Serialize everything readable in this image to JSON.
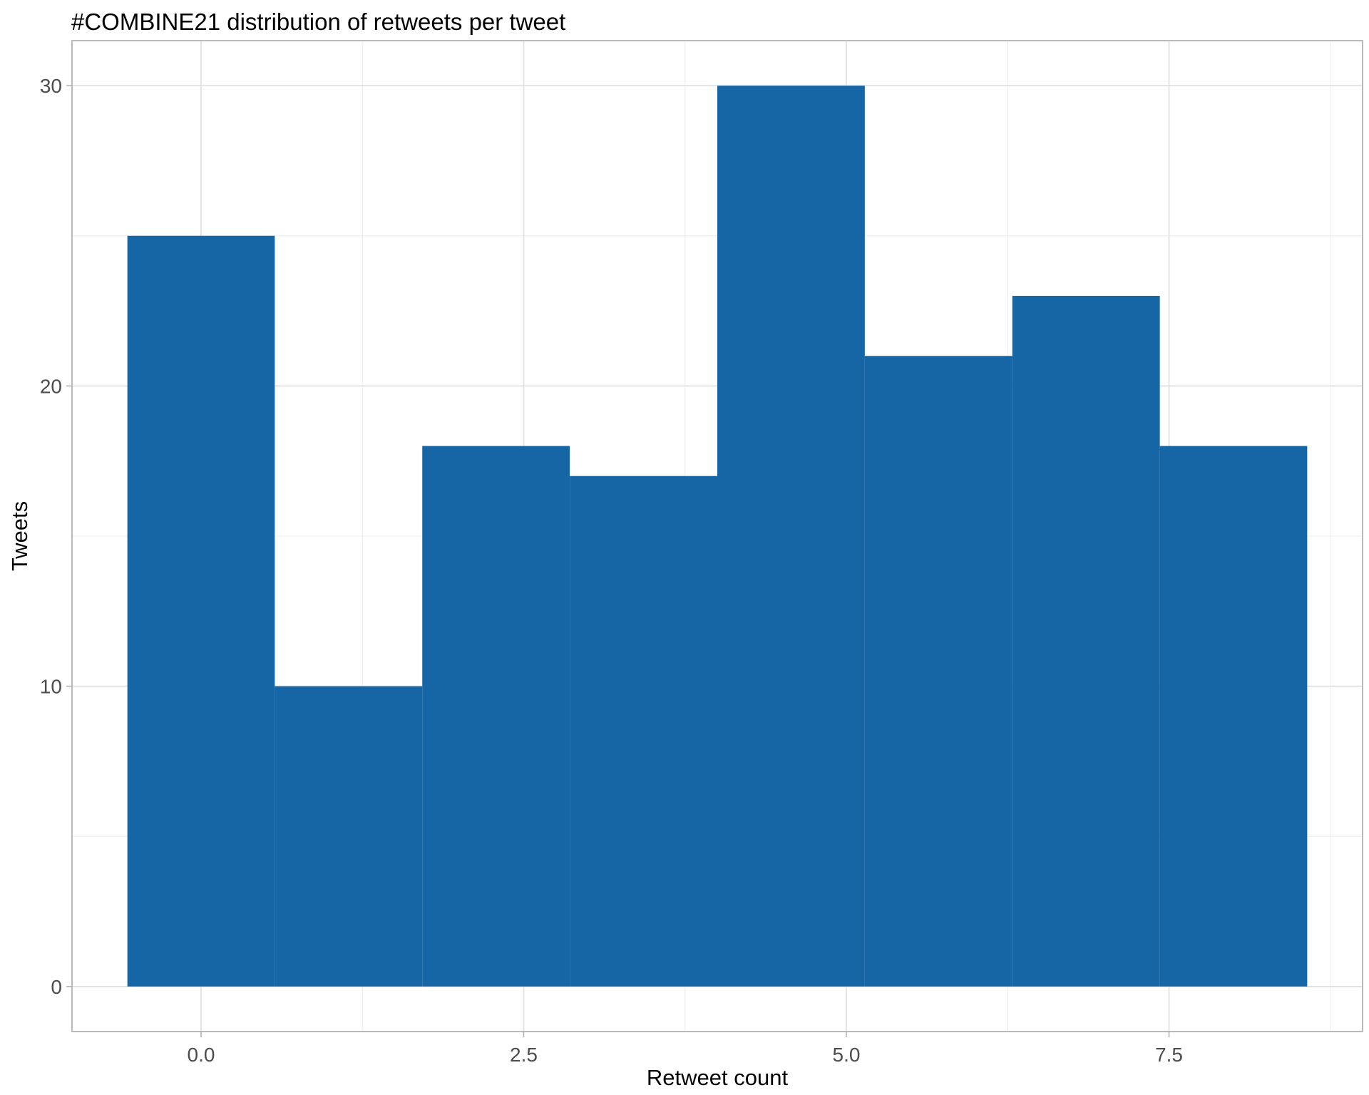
{
  "chart_data": {
    "type": "bar",
    "title": "#COMBINE21 distribution of retweets per tweet",
    "xlabel": "Retweet count",
    "ylabel": "Tweets",
    "bins": [
      {
        "x0": -0.571,
        "x1": 0.571,
        "count": 25
      },
      {
        "x0": 0.571,
        "x1": 1.714,
        "count": 10
      },
      {
        "x0": 1.714,
        "x1": 2.857,
        "count": 18
      },
      {
        "x0": 2.857,
        "x1": 4.0,
        "count": 17
      },
      {
        "x0": 4.0,
        "x1": 5.143,
        "count": 30
      },
      {
        "x0": 5.143,
        "x1": 6.286,
        "count": 21
      },
      {
        "x0": 6.286,
        "x1": 7.429,
        "count": 23
      },
      {
        "x0": 7.429,
        "x1": 8.571,
        "count": 18
      }
    ],
    "xlim": [
      -1.0,
      9.0
    ],
    "ylim": [
      -1.5,
      31.5
    ],
    "x_ticks": [
      0.0,
      2.5,
      5.0,
      7.5
    ],
    "x_tick_labels": [
      "0.0",
      "2.5",
      "5.0",
      "7.5"
    ],
    "x_minor_ticks": [
      1.25,
      3.75,
      6.25,
      8.75
    ],
    "y_ticks": [
      0,
      10,
      20,
      30
    ],
    "y_tick_labels": [
      "0",
      "10",
      "20",
      "30"
    ],
    "y_minor_ticks": [
      5,
      15,
      25
    ],
    "bar_color": "#1666a5",
    "grid": true,
    "legend": "none"
  }
}
